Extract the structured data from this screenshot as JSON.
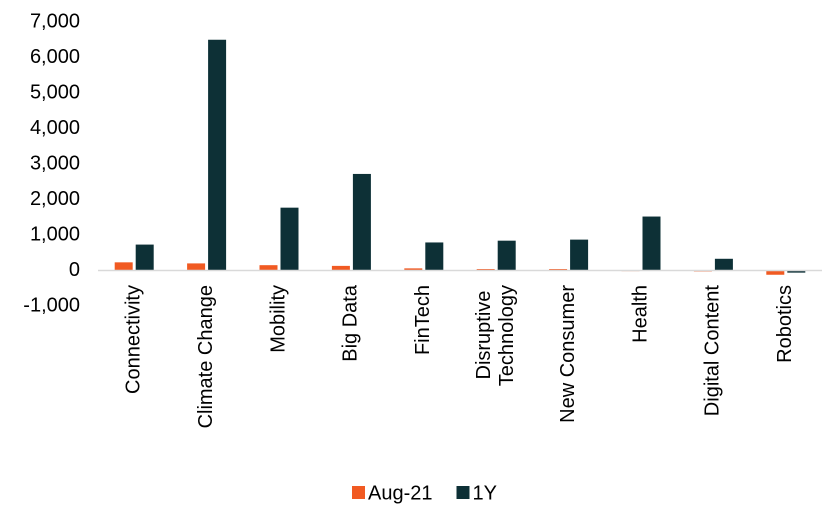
{
  "chart_data": {
    "type": "bar",
    "categories": [
      "Connectivity",
      "Climate Change",
      "Mobility",
      "Big Data",
      "FinTech",
      "Disruptive Technology",
      "New Consumer",
      "Health",
      "Digital Content",
      "Robotics"
    ],
    "series": [
      {
        "name": "Aug-21",
        "color": "#f15a22",
        "values": [
          230,
          200,
          150,
          130,
          60,
          40,
          40,
          10,
          -20,
          -120
        ]
      },
      {
        "name": "1Y",
        "color": "#0d3036",
        "values": [
          730,
          6500,
          1770,
          2720,
          790,
          840,
          870,
          1520,
          330,
          -60
        ]
      }
    ],
    "ylim": [
      -1000,
      7000
    ],
    "yticks": [
      {
        "value": -1000,
        "label": "-1,000"
      },
      0,
      {
        "value": 1000,
        "label": "1,000"
      },
      {
        "value": 2000,
        "label": "2,000"
      },
      {
        "value": 3000,
        "label": "3,000"
      },
      {
        "value": 4000,
        "label": "4,000"
      },
      {
        "value": 5000,
        "label": "5,000"
      },
      {
        "value": 6000,
        "label": "6,000"
      },
      {
        "value": 7000,
        "label": "7,000"
      }
    ],
    "grid": false
  }
}
